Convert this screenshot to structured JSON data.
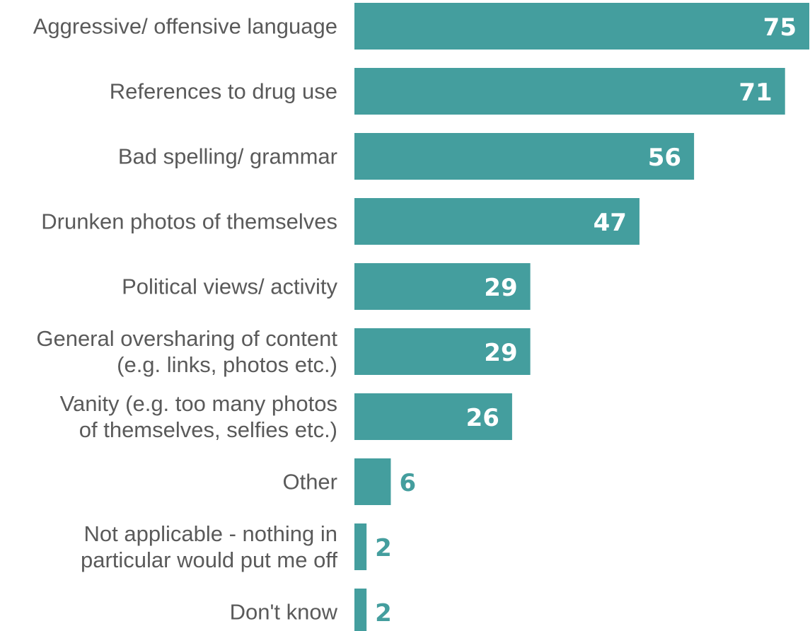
{
  "chart_data": {
    "type": "bar",
    "orientation": "horizontal",
    "categories": [
      [
        "Aggressive/ offensive language"
      ],
      [
        "References to drug use"
      ],
      [
        "Bad spelling/ grammar"
      ],
      [
        "Drunken photos of themselves"
      ],
      [
        "Political views/ activity"
      ],
      [
        "General oversharing of content",
        "(e.g. links, photos etc.)"
      ],
      [
        "Vanity (e.g. too many photos",
        "of themselves, selfies etc.)"
      ],
      [
        "Other"
      ],
      [
        "Not applicable - nothing in",
        "particular would put me off"
      ],
      [
        "Don't know"
      ]
    ],
    "values": [
      75,
      71,
      56,
      47,
      29,
      29,
      26,
      6,
      2,
      2
    ],
    "xlim": [
      0,
      75
    ],
    "grid": false,
    "legend": "none",
    "colors": {
      "bar": "#449e9e",
      "label": "#5a5a5a",
      "value_inside": "#ffffff",
      "value_outside": "#449e9e"
    }
  }
}
